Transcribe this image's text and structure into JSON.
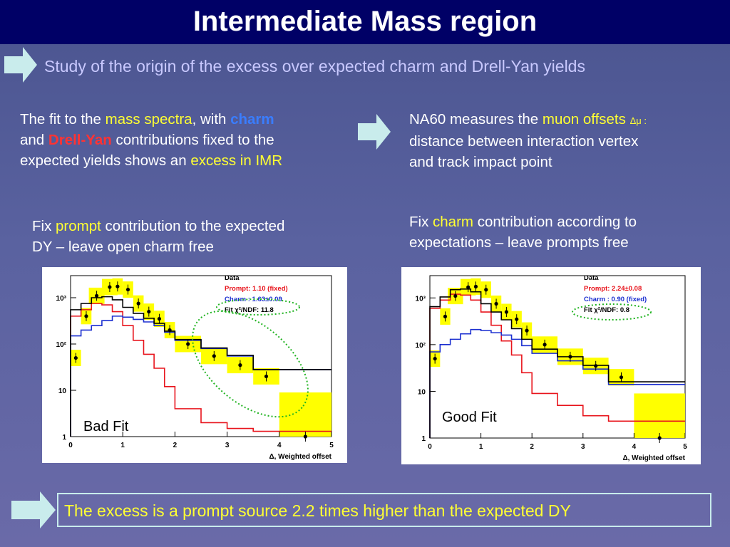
{
  "slide": {
    "title": "Intermediate Mass region",
    "subtitle": "Study of the origin of the excess over expected charm and Drell-Yan yields",
    "left_block": {
      "line1_a": "The fit to the ",
      "line1_b": "mass spectra",
      "line1_c": ", with ",
      "line1_d": "charm",
      "line2_a": "and ",
      "line2_b": "Drell-Yan",
      "line2_c": " contributions fixed to the",
      "line3_a": "expected yields shows an ",
      "line3_b": "excess in IMR"
    },
    "right_block": {
      "line1_a": "NA60 measures the  ",
      "line1_b": "muon offsets",
      "line1_symbol": "Δμ :",
      "line2": "distance between interaction vertex",
      "line3": "and track impact point"
    },
    "fix_left": {
      "a": "Fix ",
      "b": "prompt",
      "c": " contribution to the expected",
      "line2": "DY – leave open charm free"
    },
    "fix_right": {
      "a": "Fix ",
      "b": "charm",
      "c": " contribution according to",
      "line2": "expectations – leave prompts free"
    },
    "conclusion": "The excess is a prompt source 2.2 times higher than the expected DY"
  },
  "chart_data": [
    {
      "type": "line",
      "title": "",
      "xlabel": "Δ, Weighted offset",
      "ylabel": "",
      "xlim": [
        0,
        5
      ],
      "ylim": [
        1,
        3000
      ],
      "yscale": "log",
      "x_ticks": [
        "0",
        "1",
        "2",
        "3",
        "4",
        "5"
      ],
      "y_ticks": [
        "1",
        "10",
        "10²",
        "10³"
      ],
      "legend": [
        "Data",
        "Prompt: 1.10 (fixed)",
        "Charm : 1.63±0.09",
        "Fit  χ²/NDF: 11.8"
      ],
      "annotation": "Bad Fit",
      "series": [
        {
          "name": "Data",
          "x": [
            0.1,
            0.3,
            0.5,
            0.75,
            0.9,
            1.1,
            1.3,
            1.5,
            1.7,
            1.9,
            2.25,
            2.75,
            3.25,
            3.75,
            4.5
          ],
          "y": [
            50,
            400,
            1100,
            1700,
            1750,
            1500,
            750,
            500,
            350,
            200,
            100,
            55,
            35,
            20,
            1
          ]
        },
        {
          "name": "Prompt",
          "x": [
            0,
            0.2,
            0.4,
            0.6,
            0.8,
            1.0,
            1.2,
            1.4,
            1.6,
            1.8,
            2.0,
            2.5,
            3.0,
            3.5,
            4.0,
            5.0
          ],
          "y": [
            1,
            400,
            550,
            750,
            700,
            500,
            250,
            120,
            60,
            30,
            12,
            4,
            2,
            1.5,
            1.3,
            1.3
          ]
        },
        {
          "name": "Charm",
          "x": [
            0,
            0.2,
            0.4,
            0.6,
            0.8,
            1.0,
            1.2,
            1.4,
            1.6,
            1.8,
            2.0,
            2.5,
            3.0,
            3.5,
            4.0,
            5.0
          ],
          "y": [
            1,
            150,
            200,
            250,
            320,
            400,
            380,
            340,
            300,
            250,
            180,
            120,
            80,
            55,
            28,
            28
          ]
        },
        {
          "name": "Fit",
          "x": [
            0,
            0.2,
            0.4,
            0.6,
            0.8,
            1.0,
            1.2,
            1.4,
            1.6,
            1.8,
            2.0,
            2.5,
            3.0,
            3.5,
            4.0,
            5.0
          ],
          "y": [
            1,
            550,
            750,
            1000,
            1050,
            900,
            620,
            460,
            360,
            280,
            190,
            125,
            82,
            57,
            28,
            28
          ]
        }
      ]
    },
    {
      "type": "line",
      "title": "",
      "xlabel": "Δ, Weighted offset",
      "ylabel": "",
      "xlim": [
        0,
        5
      ],
      "ylim": [
        1,
        3000
      ],
      "yscale": "log",
      "x_ticks": [
        "0",
        "1",
        "2",
        "3",
        "4",
        "5"
      ],
      "y_ticks": [
        "1",
        "10",
        "10²",
        "10³"
      ],
      "legend": [
        "Data",
        "Prompt: 2.24±0.08",
        "Charm : 0.90 (fixed)",
        "Fit  χ²/NDF:  0.8"
      ],
      "annotation": "Good Fit",
      "series": [
        {
          "name": "Data",
          "x": [
            0.1,
            0.3,
            0.5,
            0.75,
            0.9,
            1.1,
            1.3,
            1.5,
            1.7,
            1.9,
            2.25,
            2.75,
            3.25,
            3.75,
            4.5
          ],
          "y": [
            50,
            400,
            1100,
            1700,
            1750,
            1500,
            750,
            500,
            350,
            200,
            100,
            55,
            35,
            20,
            1
          ]
        },
        {
          "name": "Prompt",
          "x": [
            0,
            0.2,
            0.4,
            0.6,
            0.8,
            1.0,
            1.2,
            1.4,
            1.6,
            1.8,
            2.0,
            2.5,
            3.0,
            3.5,
            4.0,
            5.0
          ],
          "y": [
            1,
            600,
            900,
            1200,
            1150,
            900,
            500,
            260,
            120,
            60,
            25,
            9,
            5,
            3,
            2.3,
            2.3
          ]
        },
        {
          "name": "Charm",
          "x": [
            0,
            0.2,
            0.4,
            0.6,
            0.8,
            1.0,
            1.2,
            1.4,
            1.6,
            1.8,
            2.0,
            2.5,
            3.0,
            3.5,
            4.0,
            5.0
          ],
          "y": [
            1,
            70,
            100,
            130,
            170,
            210,
            200,
            180,
            160,
            130,
            95,
            65,
            45,
            30,
            14,
            14
          ]
        },
        {
          "name": "Fit",
          "x": [
            0,
            0.2,
            0.4,
            0.6,
            0.8,
            1.0,
            1.2,
            1.4,
            1.6,
            1.8,
            2.0,
            2.5,
            3.0,
            3.5,
            4.0,
            5.0
          ],
          "y": [
            1,
            650,
            1050,
            1500,
            1550,
            1350,
            750,
            500,
            340,
            220,
            130,
            80,
            55,
            36,
            16,
            16
          ]
        }
      ]
    }
  ]
}
